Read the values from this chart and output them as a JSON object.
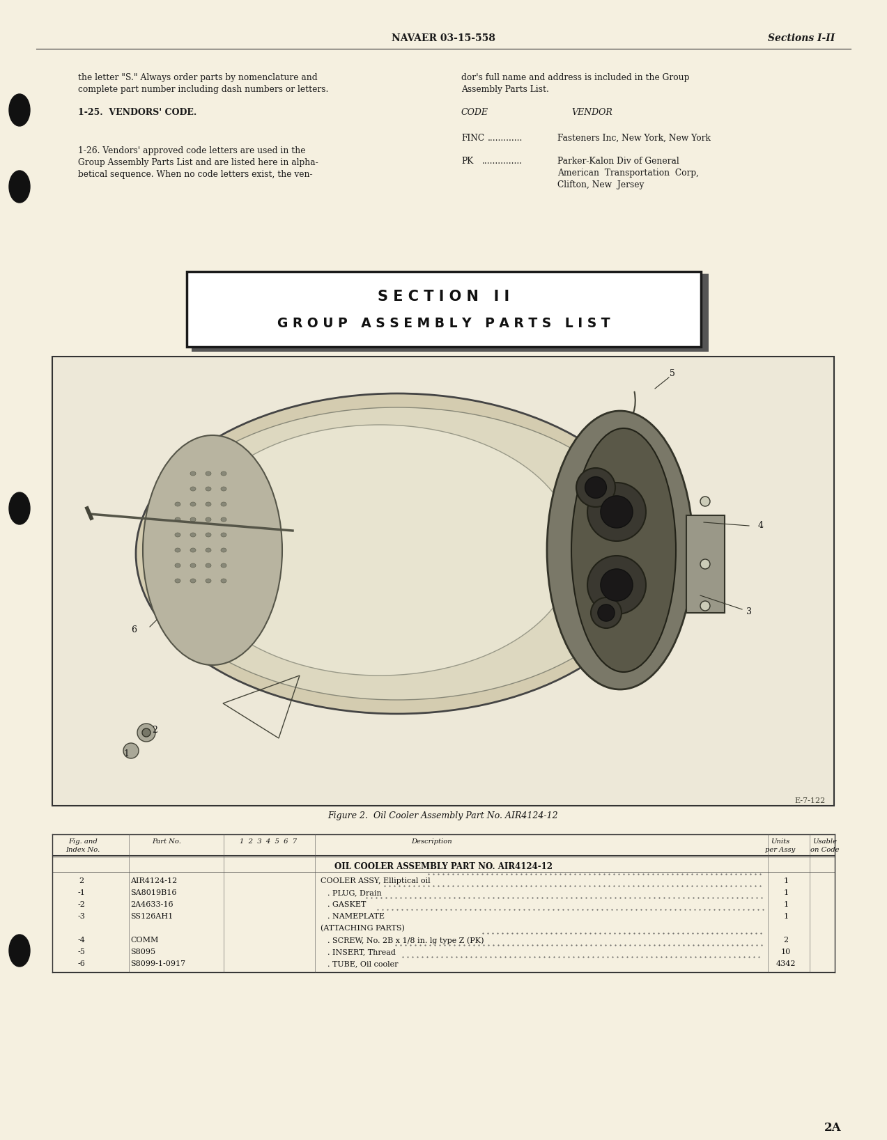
{
  "bg_color": "#f5f0e0",
  "header_text_left": "NAVAER 03-15-558",
  "header_text_right": "Sections I-II",
  "page_number": "2A",
  "para1_left_line1": "the letter \"S.\" Always order parts by nomenclature and",
  "para1_left_line2": "complete part number including dash numbers or letters.",
  "para1_right_line1": "dor's full name and address is included in the Group",
  "para1_right_line2": "Assembly Parts List.",
  "section_heading1": "1-25.  VENDORS' CODE.",
  "code_col_header": "CODE",
  "vendor_col_header": "VENDOR",
  "vendor_finc_code": "FINC",
  "vendor_finc_dots": ".............",
  "vendor_finc_name": "Fasteners Inc, New York, New York",
  "vendor_pk_code": "PK",
  "vendor_pk_dots": "...............",
  "vendor_pk_name1": "Parker-Kalon Div of General",
  "vendor_pk_name2": "American  Transportation  Corp,",
  "vendor_pk_name3": "Clifton, New  Jersey",
  "para2_left1": "1-26. Vendors' approved code letters are used in the",
  "para2_left2": "Group Assembly Parts List and are listed here in alpha-",
  "para2_left3": "betical sequence. When no code letters exist, the ven-",
  "section2_title1": "S E C T I O N   I I",
  "section2_title2": "G R O U P   A S S E M B L Y   P A R T S   L I S T",
  "figure_caption": "Figure 2.  Oil Cooler Assembly Part No. AIR4124-12",
  "diagram_label_e": "E-7-122",
  "table_header_col1": "Fig. and\nIndex No.",
  "table_header_col2": "Part No.",
  "table_header_col3": "1  2  3  4  5  6  7",
  "table_header_col4": "Description",
  "table_header_col5": "Units\nper Assy",
  "table_header_col6": "Usable\non Code",
  "table_assembly_title": "OIL COOLER ASSEMBLY PART NO. AIR4124-12",
  "table_rows": [
    {
      "fig": "2",
      "part": "AIR4124-12",
      "indenture": 0,
      "desc": "COOLER ASSY, Elliptical oil",
      "dots": true,
      "units": "1",
      "code": ""
    },
    {
      "fig": "-1",
      "part": "SA8019B16",
      "indenture": 1,
      "desc": "PLUG, Drain",
      "dots": true,
      "units": "1",
      "code": ""
    },
    {
      "fig": "-2",
      "part": "2A4633-16",
      "indenture": 1,
      "desc": "GASKET",
      "dots": true,
      "units": "1",
      "code": ""
    },
    {
      "fig": "-3",
      "part": "SS126AH1",
      "indenture": 1,
      "desc": "NAMEPLATE",
      "dots": true,
      "units": "1",
      "code": ""
    },
    {
      "fig": "",
      "part": "",
      "indenture": 0,
      "desc": "(ATTACHING PARTS)",
      "dots": false,
      "units": "",
      "code": ""
    },
    {
      "fig": "-4",
      "part": "COMM",
      "indenture": 1,
      "desc": "SCREW, No. 2B x 1/8 in. lg type Z (PK)",
      "dots": true,
      "units": "2",
      "code": ""
    },
    {
      "fig": "-5",
      "part": "S8095",
      "indenture": 1,
      "desc": "INSERT, Thread",
      "dots": true,
      "units": "10",
      "code": ""
    },
    {
      "fig": "-6",
      "part": "S8099-1-0917",
      "indenture": 1,
      "desc": "TUBE, Oil cooler",
      "dots": true,
      "units": "4342",
      "code": ""
    }
  ]
}
